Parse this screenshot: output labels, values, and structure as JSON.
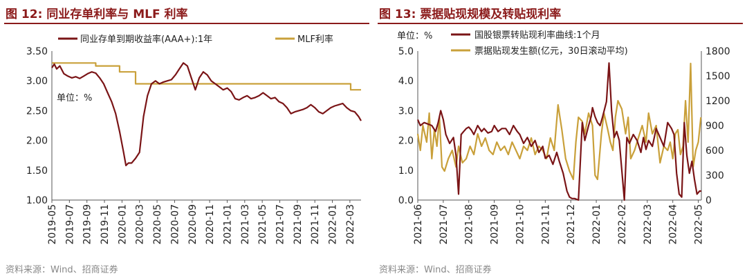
{
  "left": {
    "title": "图 12:  同业存单利率与 MLF 利率",
    "source": "资料来源：Wind、招商证券"
  },
  "right": {
    "title": "图 13:  票据贴现规模及转贴现利率",
    "source": "资料来源：Wind、招商证券"
  },
  "colors": {
    "maroon": "#7a1416",
    "gold": "#c9a03a",
    "title": "#8b1a1a"
  },
  "chart_data": [
    {
      "type": "line",
      "unit_label": "单位：%",
      "ylim": [
        1.0,
        3.5
      ],
      "yticks": [
        "3.50",
        "3.00",
        "2.50",
        "2.00",
        "1.50",
        "1.00"
      ],
      "xticks": [
        "2019-05",
        "2019-07",
        "2019-09",
        "2019-11",
        "2020-01",
        "2020-03",
        "2020-05",
        "2020-07",
        "2020-09",
        "2020-11",
        "2021-01",
        "2021-03",
        "2021-05",
        "2021-07",
        "2021-09",
        "2021-11",
        "2022-01",
        "2022-03"
      ],
      "legend_placement": "top",
      "series": [
        {
          "name": "同业存单到期收益率(AAA+):1年",
          "color": "#7a1416",
          "x": [
            0,
            0.3,
            0.6,
            1,
            1.5,
            2,
            2.5,
            3,
            3.5,
            4,
            4.5,
            5,
            5.5,
            6,
            6.5,
            7,
            7.5,
            8,
            8.5,
            9,
            9.3,
            9.6,
            10,
            10.5,
            11,
            11.5,
            12,
            12.5,
            13,
            13.5,
            14,
            14.5,
            15,
            15.5,
            16,
            16.5,
            17,
            17.5,
            18,
            18.5,
            19,
            19.5,
            20,
            20.5,
            21,
            21.5,
            22,
            22.5,
            23,
            23.5,
            24,
            24.5,
            25,
            25.5,
            26,
            26.5,
            27,
            27.5,
            28,
            28.5,
            29,
            29.5,
            30,
            30.5,
            31,
            31.5,
            32,
            32.5,
            33,
            33.5,
            34,
            34.5,
            35,
            35.5,
            36,
            36.5,
            37,
            37.5,
            38,
            38.5,
            38.8
          ],
          "values": [
            3.22,
            3.28,
            3.2,
            3.25,
            3.12,
            3.08,
            3.05,
            3.07,
            3.04,
            3.08,
            3.12,
            3.15,
            3.13,
            3.05,
            2.95,
            2.8,
            2.65,
            2.45,
            2.15,
            1.8,
            1.58,
            1.62,
            1.62,
            1.7,
            1.8,
            2.4,
            2.75,
            2.95,
            3.0,
            2.95,
            2.98,
            3.0,
            3.02,
            3.1,
            3.2,
            3.3,
            3.25,
            3.05,
            2.85,
            3.05,
            3.15,
            3.1,
            3.0,
            2.95,
            2.9,
            2.85,
            2.88,
            2.82,
            2.7,
            2.68,
            2.72,
            2.75,
            2.7,
            2.72,
            2.75,
            2.8,
            2.75,
            2.7,
            2.72,
            2.65,
            2.62,
            2.55,
            2.45,
            2.48,
            2.5,
            2.52,
            2.55,
            2.6,
            2.55,
            2.48,
            2.45,
            2.5,
            2.55,
            2.58,
            2.6,
            2.62,
            2.55,
            2.5,
            2.48,
            2.4,
            2.33
          ]
        },
        {
          "name": "MLF利率",
          "color": "#c9a03a",
          "x": [
            0,
            5.5,
            5.5,
            8.5,
            8.5,
            10.5,
            10.5,
            16,
            16,
            37.5,
            37.5,
            38.8
          ],
          "values": [
            3.3,
            3.3,
            3.25,
            3.25,
            3.15,
            3.15,
            2.95,
            2.95,
            2.95,
            2.95,
            2.85,
            2.85
          ]
        }
      ]
    },
    {
      "type": "line",
      "unit_label": "单位：%",
      "ylim": [
        0.0,
        5.0
      ],
      "yticks": [
        "5.0",
        "4.0",
        "3.0",
        "2.0",
        "1.0",
        "0.0"
      ],
      "y2lim": [
        0,
        1800
      ],
      "y2ticks": [
        "1800",
        "1500",
        "1200",
        "900",
        "600",
        "300",
        "0"
      ],
      "xticks": [
        "2021-06",
        "2021-07",
        "2021-08",
        "2021-09",
        "2021-10",
        "2021-11",
        "2021-12",
        "2022-01",
        "2022-02",
        "2022-03",
        "2022-04",
        "2022-05"
      ],
      "legend_placement": "top",
      "series": [
        {
          "name": "国股银票转贴现利率曲线:1个月",
          "axis": "left",
          "color": "#7a1416",
          "x": [
            0,
            0.1,
            0.25,
            0.4,
            0.55,
            0.7,
            0.8,
            0.9,
            1.0,
            1.1,
            1.25,
            1.4,
            1.5,
            1.6,
            1.7,
            1.8,
            1.9,
            2.0,
            2.1,
            2.2,
            2.35,
            2.5,
            2.6,
            2.75,
            2.9,
            3.0,
            3.15,
            3.3,
            3.45,
            3.6,
            3.75,
            3.9,
            4.0,
            4.15,
            4.3,
            4.45,
            4.6,
            4.75,
            4.9,
            5.0,
            5.15,
            5.3,
            5.45,
            5.55,
            5.7,
            5.85,
            5.95,
            6.05,
            6.15,
            6.3,
            6.45,
            6.55,
            6.7,
            6.8,
            6.85,
            6.95,
            7.05,
            7.15,
            7.25,
            7.4,
            7.5,
            7.6,
            7.7,
            7.8,
            7.9,
            8.0,
            8.1,
            8.2,
            8.3,
            8.45,
            8.6,
            8.75,
            8.85,
            8.95,
            9.05,
            9.2,
            9.35,
            9.5,
            9.65,
            9.8,
            9.95,
            10.05,
            10.15,
            10.25,
            10.35,
            10.45,
            10.55,
            10.65,
            10.75,
            10.85,
            10.95,
            11.05,
            11.12
          ],
          "values": [
            2.7,
            2.5,
            2.6,
            2.55,
            2.5,
            2.3,
            2.6,
            3.0,
            2.7,
            2.2,
            1.9,
            2.1,
            1.5,
            0.2,
            2.2,
            2.3,
            2.4,
            2.45,
            2.35,
            2.2,
            2.5,
            2.3,
            2.4,
            2.25,
            2.3,
            2.5,
            2.3,
            2.4,
            2.4,
            2.2,
            2.5,
            2.3,
            2.2,
            1.9,
            2.1,
            1.8,
            2.0,
            1.6,
            1.8,
            1.4,
            1.5,
            1.2,
            1.6,
            1.3,
            0.9,
            0.3,
            0.1,
            0.05,
            0.05,
            0.0,
            2.6,
            2.0,
            2.5,
            2.8,
            3.1,
            2.8,
            2.6,
            2.5,
            2.8,
            3.3,
            4.6,
            3.0,
            2.1,
            2.3,
            2.0,
            1.0,
            0.0,
            2.1,
            1.9,
            2.2,
            2.0,
            1.6,
            2.1,
            1.7,
            2.0,
            1.8,
            2.4,
            2.1,
            1.8,
            2.6,
            2.4,
            2.2,
            0.9,
            0.2,
            0.1,
            2.6,
            1.5,
            0.9,
            1.3,
            0.7,
            0.2,
            0.3,
            0.3
          ]
        },
        {
          "name": "票据贴现发生额(亿元，30日滚动平均)",
          "axis": "right",
          "color": "#c9a03a",
          "x": [
            0,
            0.1,
            0.2,
            0.35,
            0.45,
            0.55,
            0.65,
            0.75,
            0.85,
            0.95,
            1.05,
            1.2,
            1.35,
            1.5,
            1.6,
            1.75,
            1.9,
            2.05,
            2.2,
            2.35,
            2.5,
            2.65,
            2.8,
            2.95,
            3.1,
            3.25,
            3.4,
            3.55,
            3.7,
            3.85,
            4.0,
            4.15,
            4.3,
            4.45,
            4.6,
            4.75,
            4.9,
            5.05,
            5.2,
            5.35,
            5.5,
            5.65,
            5.8,
            5.95,
            6.1,
            6.2,
            6.3,
            6.45,
            6.55,
            6.7,
            6.85,
            6.95,
            7.05,
            7.2,
            7.3,
            7.45,
            7.55,
            7.65,
            7.75,
            7.85,
            8.0,
            8.15,
            8.25,
            8.35,
            8.5,
            8.65,
            8.8,
            8.95,
            9.05,
            9.2,
            9.35,
            9.5,
            9.65,
            9.8,
            9.9,
            10.0,
            10.1,
            10.2,
            10.3,
            10.4,
            10.5,
            10.6,
            10.7,
            10.8,
            10.9,
            11.0,
            11.1
          ],
          "values": [
            800,
            600,
            900,
            700,
            1050,
            500,
            850,
            650,
            1000,
            400,
            350,
            500,
            600,
            400,
            650,
            450,
            500,
            650,
            550,
            800,
            650,
            750,
            600,
            550,
            700,
            600,
            650,
            550,
            700,
            600,
            500,
            650,
            600,
            750,
            550,
            650,
            600,
            500,
            750,
            600,
            1150,
            850,
            500,
            350,
            250,
            700,
            1000,
            950,
            800,
            1050,
            900,
            300,
            250,
            800,
            1050,
            850,
            700,
            600,
            1000,
            1200,
            1100,
            800,
            1000,
            500,
            600,
            750,
            900,
            700,
            1050,
            800,
            900,
            450,
            650,
            600,
            700,
            500,
            800,
            850,
            550,
            650,
            1200,
            700,
            1650,
            400,
            600,
            700,
            1000
          ]
        }
      ]
    }
  ]
}
